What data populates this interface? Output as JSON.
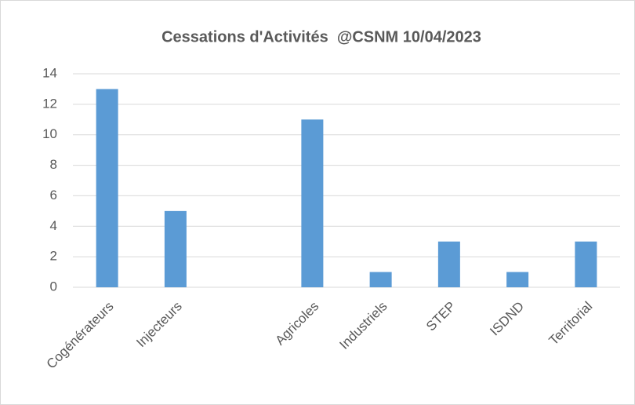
{
  "chart_data": {
    "type": "bar",
    "title": "Cessations d'Activités  @CSNM 10/04/2023",
    "categories": [
      "Cogénérateurs",
      "Injecteurs",
      null,
      "Agricoles",
      "Industriels",
      "STEP",
      "ISDND",
      "Territorial"
    ],
    "values": [
      13,
      5,
      null,
      11,
      1,
      3,
      1,
      3
    ],
    "color": "#5b9bd5",
    "ylim": [
      0,
      14
    ],
    "yticks": [
      0,
      2,
      4,
      6,
      8,
      10,
      12,
      14
    ],
    "grid": true
  }
}
